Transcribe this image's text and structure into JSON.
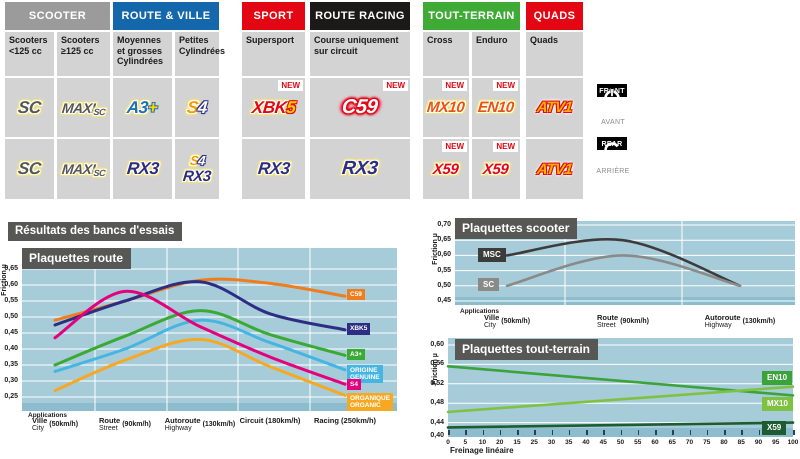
{
  "results_title": "Résultats des bancs d'essais",
  "table": {
    "groups": [
      {
        "label": "SCOOTER",
        "color": "#9c9b9b"
      },
      {
        "label": "ROUTE & VILLE",
        "color": "#1467ab"
      },
      {
        "label": "SPORT",
        "color": "#e30613"
      },
      {
        "label": "ROUTE RACING",
        "color": "#1b1a19"
      },
      {
        "label": "TOUT-TERRAIN",
        "color": "#3faa35"
      },
      {
        "label": "QUADS",
        "color": "#e30613"
      }
    ],
    "columns": [
      "Scooters <125 cc",
      "Scooters ≥125 cc",
      "Moyennes et grosses Cylindrées",
      "Petites Cylindrées",
      "Supersport",
      "Course uniquement sur circuit",
      "Cross",
      "Enduro",
      "Quads"
    ],
    "front": [
      {
        "label": "SC"
      },
      {
        "maxi": "MAXI",
        "sub": "SC"
      },
      {
        "base": "A3",
        "plus": "+"
      },
      {
        "s": "S",
        "four": "4"
      },
      {
        "xbk": "XBK",
        "five": "5",
        "new": "NEW"
      },
      {
        "label": "C59",
        "new": "NEW"
      },
      {
        "label": "MX10",
        "new": "NEW"
      },
      {
        "label": "EN10",
        "new": "NEW"
      },
      {
        "label": "ATV1"
      }
    ],
    "rear": [
      {
        "label": "SC"
      },
      {
        "maxi": "MAXI",
        "sub": "SC"
      },
      {
        "label": "RX3"
      },
      {
        "s": "S",
        "four": "4",
        "label2": "RX3"
      },
      {
        "label": "RX3"
      },
      {
        "label": "RX3"
      },
      {
        "label": "X59",
        "new": "NEW"
      },
      {
        "label": "X59",
        "new": "NEW"
      },
      {
        "label": "ATV1"
      }
    ]
  },
  "side": {
    "front": "FRONT",
    "front_fr": "AVANT",
    "rear": "REAR",
    "rear_fr": "ARRIÈRE"
  },
  "chart_data": [
    {
      "id": "route",
      "type": "line",
      "title": "Plaquettes route",
      "ylabel": "Friction µ",
      "x_caption": "Applications",
      "ylim": [
        0.25,
        0.65
      ],
      "yticks": [
        "0,65",
        "0,60",
        "0,55",
        "0,50",
        "0,45",
        "0,40",
        "0,35",
        "0,30",
        "0,25"
      ],
      "grid": true,
      "legend_position": "right",
      "categories": [
        {
          "name": "Ville",
          "alt": "City",
          "speed": "(50km/h)"
        },
        {
          "name": "Route",
          "alt": "Street",
          "speed": "(90km/h)"
        },
        {
          "name": "Autoroute",
          "alt": "Highway",
          "speed": "(130km/h)"
        },
        {
          "name": "Circuit",
          "alt": "",
          "speed": "(180km/h)"
        },
        {
          "name": "Racing",
          "alt": "",
          "speed": "(250km/h)"
        }
      ],
      "series": [
        {
          "name": "C59",
          "color": "#ef7d1d",
          "values": [
            0.49,
            0.55,
            0.615,
            0.605,
            0.565
          ],
          "label_y": 0.565
        },
        {
          "name": "XBK5",
          "color": "#2d2e83",
          "values": [
            0.475,
            0.55,
            0.61,
            0.51,
            0.46
          ],
          "label_y": 0.458
        },
        {
          "name": "A3+",
          "color": "#3aaa35",
          "values": [
            0.35,
            0.44,
            0.52,
            0.445,
            0.38
          ],
          "label_y": 0.378
        },
        {
          "name": "ORIGINE|GENUINE",
          "color": "#45b5e2",
          "values": [
            0.33,
            0.4,
            0.49,
            0.42,
            0.335
          ],
          "label_y": 0.328
        },
        {
          "name": "S4",
          "color": "#e5007d",
          "values": [
            0.435,
            0.58,
            0.47,
            0.375,
            0.29
          ],
          "label_y": 0.284
        },
        {
          "name": "ORGANIQUE|ORGANIC",
          "color": "#f7a823",
          "values": [
            0.27,
            0.365,
            0.43,
            0.345,
            0.255
          ],
          "label_y": 0.242
        }
      ]
    },
    {
      "id": "scooter",
      "type": "line",
      "title": "Plaquettes scooter",
      "ylabel": "Friction µ",
      "x_caption": "Applications",
      "ylim": [
        0.45,
        0.7
      ],
      "yticks": [
        "0,70",
        "0,65",
        "0,60",
        "0,55",
        "0,50",
        "0,45"
      ],
      "grid": true,
      "legend_position": "left",
      "categories": [
        {
          "name": "Ville",
          "alt": "City",
          "speed": "(50km/h)"
        },
        {
          "name": "Route",
          "alt": "Street",
          "speed": "(90km/h)"
        },
        {
          "name": "Autoroute",
          "alt": "Highway",
          "speed": "(130km/h)"
        }
      ],
      "series": [
        {
          "name": "MSC",
          "color": "#3c3c3b",
          "values": [
            0.6,
            0.65,
            0.5
          ],
          "label_y": 0.6
        },
        {
          "name": "SC",
          "color": "#8a8a89",
          "values": [
            0.5,
            0.6,
            0.5
          ],
          "label_y": 0.503
        }
      ]
    },
    {
      "id": "terrain",
      "type": "line",
      "title": "Plaquettes tout-terrain",
      "ylabel": "Friction µ",
      "x_caption": "Freinage linéaire",
      "ylim": [
        0.4,
        0.6
      ],
      "yticks": [
        "0,60",
        "0,56",
        "0,52",
        "0,48",
        "0,44",
        "0,40"
      ],
      "xticks": [
        "0",
        "5",
        "10",
        "20",
        "15",
        "25",
        "30",
        "35",
        "40",
        "45",
        "50",
        "55",
        "60",
        "65",
        "70",
        "75",
        "80",
        "85",
        "90",
        "95",
        "100"
      ],
      "grid": true,
      "legend_position": "right",
      "series": [
        {
          "name": "EN10",
          "color": "#3ba33a",
          "values": [
            0.556,
            0.496
          ],
          "label_y": 0.531
        },
        {
          "name": "MX10",
          "color": "#7fc242",
          "values": [
            0.462,
            0.514
          ],
          "label_y": 0.478
        },
        {
          "name": "X59",
          "color": "#1d5c31",
          "values": [
            0.43,
            0.44
          ],
          "label_y": 0.428
        }
      ]
    }
  ]
}
